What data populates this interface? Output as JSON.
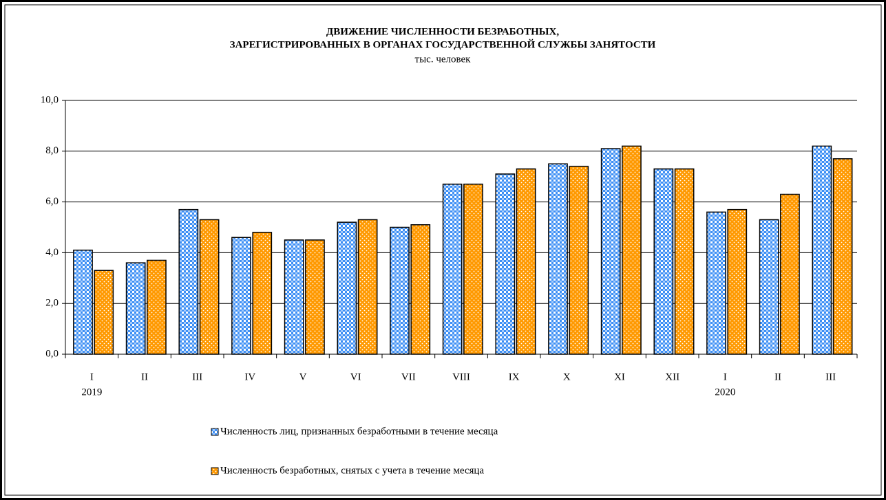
{
  "chart_data": {
    "type": "bar",
    "title": [
      "ДВИЖЕНИЕ ЧИСЛЕННОСТИ БЕЗРАБОТНЫХ,",
      "ЗАРЕГИСТРИРОВАННЫХ В ОРГАНАХ ГОСУДАРСТВЕННОЙ СЛУЖБЫ ЗАНЯТОСТИ"
    ],
    "subtitle": "тыс. человек",
    "categories": [
      "I",
      "II",
      "III",
      "IV",
      "V",
      "VI",
      "VII",
      "VIII",
      "IX",
      "X",
      "XI",
      "XII",
      "I",
      "II",
      "III"
    ],
    "category_years": [
      "2019",
      null,
      null,
      null,
      null,
      null,
      null,
      null,
      null,
      null,
      null,
      null,
      "2020",
      null,
      null
    ],
    "series": [
      {
        "name": "Численность лиц, признанных безработными в течение месяца",
        "color": "#3d8ff5",
        "values": [
          4.1,
          3.6,
          5.7,
          4.6,
          4.5,
          5.2,
          5.0,
          6.7,
          7.1,
          7.5,
          8.1,
          7.3,
          5.6,
          5.3,
          8.2
        ]
      },
      {
        "name": "Численность безработных, снятых с учета в течение месяца",
        "color": "#ff9900",
        "values": [
          3.3,
          3.7,
          5.3,
          4.8,
          4.5,
          5.3,
          5.1,
          6.7,
          7.3,
          7.4,
          8.2,
          7.3,
          5.7,
          6.3,
          7.7
        ]
      }
    ],
    "ylim": [
      0,
      10
    ],
    "yticks": [
      {
        "value": 0,
        "label": "0,0"
      },
      {
        "value": 2,
        "label": "2,0"
      },
      {
        "value": 4,
        "label": "4,0"
      },
      {
        "value": 6,
        "label": "6,0"
      },
      {
        "value": 8,
        "label": "8,0"
      },
      {
        "value": 10,
        "label": "10,0"
      }
    ],
    "grid": true,
    "legend": "bottom"
  }
}
